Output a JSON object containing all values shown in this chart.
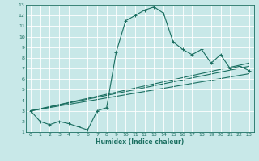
{
  "xlabel": "Humidex (Indice chaleur)",
  "bg_color": "#c8e8e8",
  "grid_color": "#b8d8d8",
  "line_color": "#1a6e60",
  "xlim": [
    -0.5,
    23.5
  ],
  "ylim": [
    1,
    13
  ],
  "xticks": [
    0,
    1,
    2,
    3,
    4,
    5,
    6,
    7,
    8,
    9,
    10,
    11,
    12,
    13,
    14,
    15,
    16,
    17,
    18,
    19,
    20,
    21,
    22,
    23
  ],
  "yticks": [
    1,
    2,
    3,
    4,
    5,
    6,
    7,
    8,
    9,
    10,
    11,
    12,
    13
  ],
  "curve1_x": [
    0,
    1,
    2,
    3,
    4,
    5,
    6,
    7,
    8,
    9,
    10,
    11,
    12,
    13,
    14,
    15,
    16,
    17,
    18,
    19,
    20,
    21,
    22,
    23
  ],
  "curve1_y": [
    3.0,
    2.0,
    1.7,
    2.0,
    1.8,
    1.5,
    1.2,
    3.0,
    3.3,
    8.5,
    11.5,
    12.0,
    12.5,
    12.8,
    12.2,
    9.5,
    8.8,
    8.3,
    8.8,
    7.5,
    8.3,
    7.0,
    7.2,
    6.8
  ],
  "line2_x": [
    0,
    23
  ],
  "line2_y": [
    3.0,
    7.5
  ],
  "line3_x": [
    0,
    23
  ],
  "line3_y": [
    3.0,
    7.2
  ],
  "line4_x": [
    0,
    23
  ],
  "line4_y": [
    3.0,
    6.5
  ]
}
